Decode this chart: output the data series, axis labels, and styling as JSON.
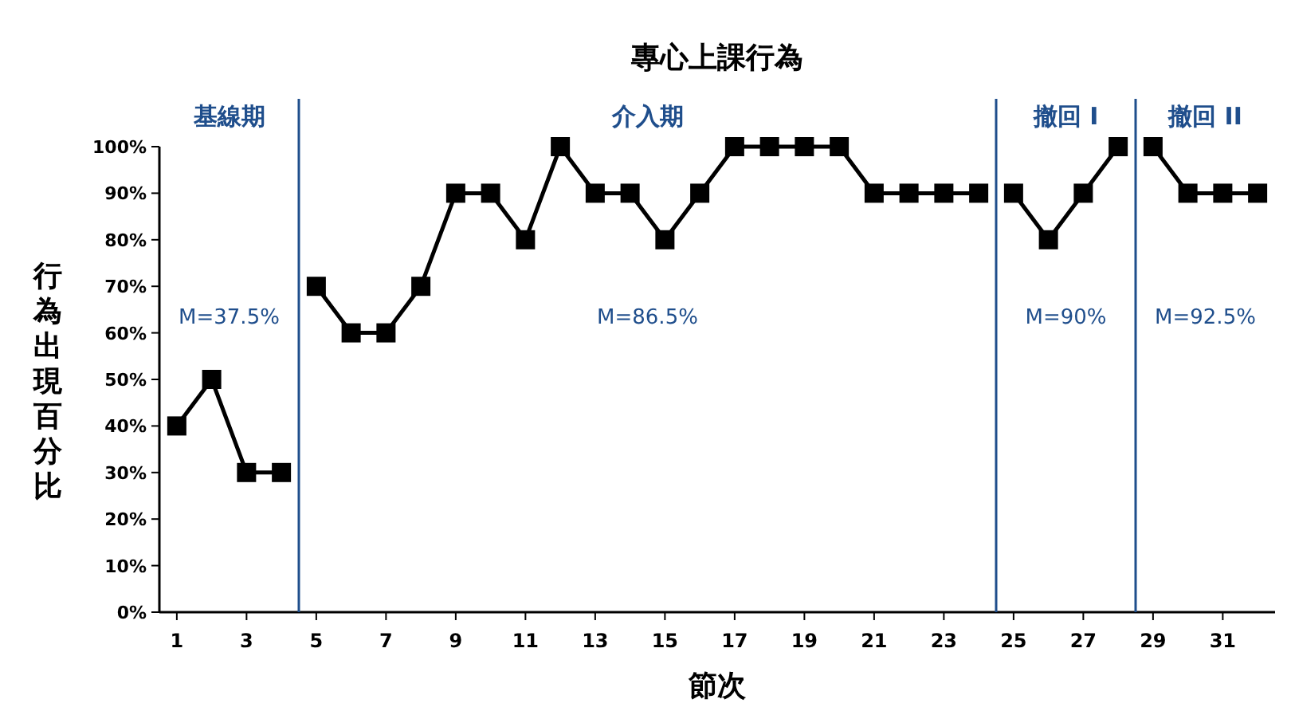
{
  "chart_data": {
    "type": "line",
    "title": "專心上課行為",
    "xlabel": "節次",
    "ylabel": "行為出現百分比",
    "series": [
      {
        "color": "#000000",
        "x": [
          1,
          2,
          3,
          4
        ],
        "values": [
          40,
          50,
          30,
          30
        ]
      },
      {
        "color": "#000000",
        "x": [
          5,
          6,
          7,
          8,
          9,
          10,
          11,
          12,
          13,
          14,
          15,
          16,
          17,
          18,
          19,
          20,
          21,
          22,
          23,
          24
        ],
        "values": [
          70,
          60,
          60,
          70,
          90,
          90,
          80,
          100,
          90,
          90,
          80,
          90,
          100,
          100,
          100,
          100,
          90,
          90,
          90,
          90
        ]
      },
      {
        "color": "#000000",
        "x": [
          25,
          26,
          27,
          28
        ],
        "values": [
          90,
          80,
          90,
          100
        ]
      },
      {
        "color": "#000000",
        "x": [
          29,
          30,
          31,
          32
        ],
        "values": [
          100,
          90,
          90,
          90
        ]
      }
    ],
    "xlim": [
      0.5,
      32.5
    ],
    "xticks": [
      1,
      3,
      5,
      7,
      9,
      11,
      13,
      15,
      17,
      19,
      21,
      23,
      25,
      27,
      29,
      31
    ],
    "ylim": [
      0,
      100
    ],
    "yticks": [
      {
        "value": 0,
        "label": "0%"
      },
      {
        "value": 10,
        "label": "10%"
      },
      {
        "value": 20,
        "label": "20%"
      },
      {
        "value": 30,
        "label": "30%"
      },
      {
        "value": 40,
        "label": "40%"
      },
      {
        "value": 50,
        "label": "50%"
      },
      {
        "value": 60,
        "label": "60%"
      },
      {
        "value": 70,
        "label": "70%"
      },
      {
        "value": 80,
        "label": "80%"
      },
      {
        "value": 90,
        "label": "90%"
      },
      {
        "value": 100,
        "label": "100%"
      }
    ],
    "ref_lines": [
      {
        "axis": "x",
        "value": 4.5,
        "color": "#1f4e8c"
      },
      {
        "axis": "x",
        "value": 24.5,
        "color": "#1f4e8c"
      },
      {
        "axis": "x",
        "value": 28.5,
        "color": "#1f4e8c"
      }
    ],
    "marker": "square",
    "line_style": "solid",
    "grid": false,
    "annotations": [
      "基線期",
      "介入期",
      "撤回 I",
      "撤回 II",
      "M=37.5%",
      "M=86.5%",
      "M=90%",
      "M=92.5%"
    ]
  }
}
